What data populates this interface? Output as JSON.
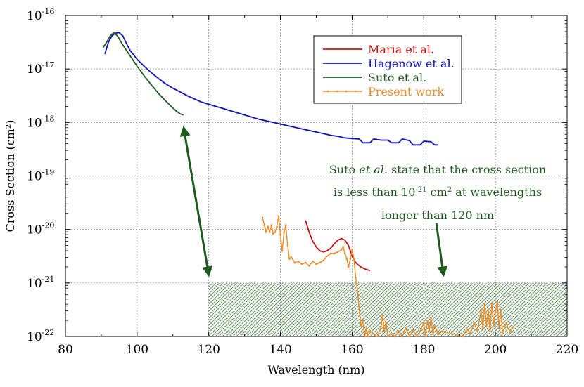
{
  "chart_data": {
    "type": "line",
    "xlabel": "Wavelength (nm)",
    "ylabel": "Cross Section (cm²)",
    "xlim": [
      80,
      220
    ],
    "ylim_log10": [
      -22,
      -16
    ],
    "y_scale": "log",
    "grid": true,
    "legend_placement": "top-right",
    "x_ticks": [
      "80",
      "100",
      "120",
      "140",
      "160",
      "180",
      "200",
      "220"
    ],
    "y_ticks": [
      {
        "base": "10",
        "exp": "-16",
        "value": -16
      },
      {
        "base": "10",
        "exp": "-17",
        "value": -17
      },
      {
        "base": "10",
        "exp": "-18",
        "value": -18
      },
      {
        "base": "10",
        "exp": "-19",
        "value": -19
      },
      {
        "base": "10",
        "exp": "-20",
        "value": -20
      },
      {
        "base": "10",
        "exp": "-21",
        "value": -21
      },
      {
        "base": "10",
        "exp": "-22",
        "value": -22
      }
    ],
    "series": [
      {
        "name": "Maria et al.",
        "color": "#cc1111",
        "marker": "none",
        "points": [
          [
            147,
            -19.83
          ],
          [
            148,
            -20.05
          ],
          [
            149,
            -20.22
          ],
          [
            150,
            -20.33
          ],
          [
            151,
            -20.4
          ],
          [
            152,
            -20.42
          ],
          [
            153,
            -20.4
          ],
          [
            154,
            -20.35
          ],
          [
            155,
            -20.27
          ],
          [
            156,
            -20.2
          ],
          [
            157,
            -20.17
          ],
          [
            158,
            -20.2
          ],
          [
            159,
            -20.3
          ],
          [
            160,
            -20.5
          ],
          [
            161,
            -20.62
          ],
          [
            162,
            -20.68
          ],
          [
            163,
            -20.72
          ],
          [
            164,
            -20.75
          ],
          [
            165,
            -20.77
          ]
        ]
      },
      {
        "name": "Hagenow et al.",
        "color": "#1111bb",
        "marker": "none",
        "points": [
          [
            91,
            -16.72
          ],
          [
            92,
            -16.5
          ],
          [
            93,
            -16.38
          ],
          [
            94,
            -16.33
          ],
          [
            95,
            -16.32
          ],
          [
            96,
            -16.38
          ],
          [
            97,
            -16.52
          ],
          [
            98,
            -16.65
          ],
          [
            100,
            -16.82
          ],
          [
            102,
            -16.95
          ],
          [
            104,
            -17.07
          ],
          [
            106,
            -17.18
          ],
          [
            108,
            -17.28
          ],
          [
            110,
            -17.36
          ],
          [
            112,
            -17.43
          ],
          [
            114,
            -17.5
          ],
          [
            116,
            -17.56
          ],
          [
            118,
            -17.62
          ],
          [
            120,
            -17.66
          ],
          [
            122,
            -17.7
          ],
          [
            124,
            -17.74
          ],
          [
            126,
            -17.78
          ],
          [
            128,
            -17.82
          ],
          [
            130,
            -17.86
          ],
          [
            132,
            -17.9
          ],
          [
            134,
            -17.94
          ],
          [
            136,
            -17.97
          ],
          [
            138,
            -18.0
          ],
          [
            140,
            -18.03
          ],
          [
            142,
            -18.06
          ],
          [
            144,
            -18.09
          ],
          [
            146,
            -18.12
          ],
          [
            148,
            -18.15
          ],
          [
            150,
            -18.18
          ],
          [
            152,
            -18.21
          ],
          [
            154,
            -18.24
          ],
          [
            156,
            -18.26
          ],
          [
            158,
            -18.29
          ],
          [
            160,
            -18.3
          ],
          [
            162,
            -18.31
          ],
          [
            163,
            -18.38
          ],
          [
            165,
            -18.38
          ],
          [
            166,
            -18.31
          ],
          [
            168,
            -18.33
          ],
          [
            170,
            -18.33
          ],
          [
            171,
            -18.38
          ],
          [
            173,
            -18.38
          ],
          [
            174,
            -18.31
          ],
          [
            176,
            -18.34
          ],
          [
            177,
            -18.42
          ],
          [
            179,
            -18.42
          ],
          [
            180,
            -18.35
          ],
          [
            182,
            -18.36
          ],
          [
            183,
            -18.42
          ],
          [
            184,
            -18.42
          ]
        ]
      },
      {
        "name": "Suto et al.",
        "color": "#1e5a1e",
        "marker": "none",
        "points": [
          [
            90.5,
            -16.6
          ],
          [
            91.5,
            -16.5
          ],
          [
            92.5,
            -16.38
          ],
          [
            93.5,
            -16.32
          ],
          [
            94.5,
            -16.38
          ],
          [
            96,
            -16.55
          ],
          [
            98,
            -16.75
          ],
          [
            100,
            -16.95
          ],
          [
            102,
            -17.13
          ],
          [
            104,
            -17.3
          ],
          [
            106,
            -17.46
          ],
          [
            108,
            -17.6
          ],
          [
            110,
            -17.73
          ],
          [
            111,
            -17.79
          ],
          [
            112,
            -17.84
          ],
          [
            113,
            -17.86
          ]
        ]
      },
      {
        "name": "Present work",
        "color": "#f08a24",
        "marker": "dot",
        "points": [
          [
            135,
            -19.78
          ],
          [
            135.5,
            -19.92
          ],
          [
            136,
            -20.05
          ],
          [
            136.5,
            -19.95
          ],
          [
            137,
            -20.05
          ],
          [
            137.5,
            -19.92
          ],
          [
            138,
            -20.08
          ],
          [
            138.5,
            -20.05
          ],
          [
            139,
            -19.95
          ],
          [
            139.5,
            -19.75
          ],
          [
            140,
            -20.1
          ],
          [
            140.5,
            -20.4
          ],
          [
            141,
            -20.05
          ],
          [
            141.5,
            -19.92
          ],
          [
            142,
            -20.3
          ],
          [
            142.5,
            -20.55
          ],
          [
            143,
            -20.52
          ],
          [
            144,
            -20.62
          ],
          [
            145,
            -20.6
          ],
          [
            146,
            -20.65
          ],
          [
            147,
            -20.62
          ],
          [
            148,
            -20.68
          ],
          [
            149,
            -20.6
          ],
          [
            150,
            -20.65
          ],
          [
            151,
            -20.62
          ],
          [
            152,
            -20.58
          ],
          [
            153,
            -20.5
          ],
          [
            154,
            -20.45
          ],
          [
            155,
            -20.45
          ],
          [
            156,
            -20.42
          ],
          [
            157,
            -20.38
          ],
          [
            157.5,
            -20.32
          ],
          [
            158,
            -20.45
          ],
          [
            158.5,
            -20.55
          ],
          [
            159,
            -20.7
          ],
          [
            159.5,
            -20.55
          ],
          [
            160,
            -20.38
          ],
          [
            160.5,
            -20.55
          ],
          [
            161,
            -20.9
          ],
          [
            161.5,
            -21.15
          ],
          [
            162,
            -21.5
          ],
          [
            162.5,
            -21.8
          ],
          [
            163,
            -21.7
          ],
          [
            163.5,
            -22.0
          ],
          [
            164,
            -21.85
          ],
          [
            164.5,
            -22.0
          ],
          [
            165,
            -21.9
          ],
          [
            166,
            -21.95
          ],
          [
            167,
            -22.0
          ],
          [
            168,
            -21.85
          ],
          [
            168.5,
            -21.6
          ],
          [
            169,
            -21.9
          ],
          [
            169.5,
            -21.75
          ],
          [
            170,
            -22.0
          ],
          [
            171,
            -21.95
          ],
          [
            172,
            -22.0
          ],
          [
            173,
            -21.9
          ],
          [
            174,
            -22.0
          ],
          [
            175,
            -21.85
          ],
          [
            176,
            -22.0
          ],
          [
            177,
            -21.88
          ],
          [
            178,
            -22.0
          ],
          [
            179,
            -21.9
          ],
          [
            180,
            -21.75
          ],
          [
            180.5,
            -22.0
          ],
          [
            181,
            -21.7
          ],
          [
            181.5,
            -21.9
          ],
          [
            182,
            -21.65
          ],
          [
            182.5,
            -21.95
          ],
          [
            183,
            -21.8
          ],
          [
            184,
            -21.95
          ],
          [
            185,
            -21.9
          ],
          [
            191,
            -22.0
          ],
          [
            192,
            -21.85
          ],
          [
            193,
            -21.95
          ],
          [
            194,
            -21.75
          ],
          [
            195,
            -21.9
          ],
          [
            196,
            -21.5
          ],
          [
            196.5,
            -21.85
          ],
          [
            197,
            -21.4
          ],
          [
            197.5,
            -21.8
          ],
          [
            198,
            -21.5
          ],
          [
            198.5,
            -21.9
          ],
          [
            199,
            -21.38
          ],
          [
            199.5,
            -21.8
          ],
          [
            200,
            -21.55
          ],
          [
            200.5,
            -21.35
          ],
          [
            201,
            -21.85
          ],
          [
            201.5,
            -21.5
          ],
          [
            202,
            -21.95
          ],
          [
            203,
            -21.75
          ],
          [
            204,
            -21.92
          ],
          [
            205,
            -21.82
          ]
        ]
      }
    ],
    "shaded_region": {
      "x_from": 120,
      "x_to": 220,
      "y_from": -22,
      "y_to": -21,
      "color": "#5a8a5a"
    },
    "annotation": {
      "color": "#1e5a1e",
      "line1_pre": "Suto ",
      "line1_italic": "et al",
      "line1_post": ". state that the cross section",
      "line2_pre": "is less than 10",
      "line2_sup": "-21",
      "line2_mid": " cm",
      "line2_sup2": "2",
      "line2_post": " at wavelengths",
      "line3": "longer than 120 nm"
    },
    "arrows": [
      {
        "from": [
          113,
          -18.1
        ],
        "to": [
          120,
          -20.85
        ],
        "double": true
      },
      {
        "from": [
          183.5,
          -19.88
        ],
        "to": [
          185.5,
          -20.85
        ],
        "double": false
      }
    ]
  }
}
